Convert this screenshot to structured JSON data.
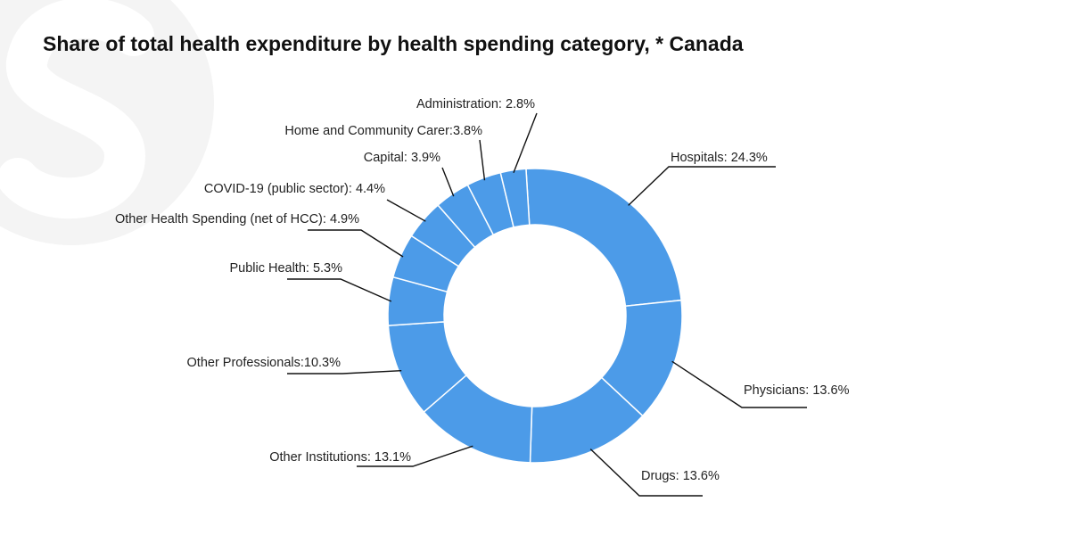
{
  "title": "Share of total health expenditure by health spending category, * Canada",
  "colors": {
    "slice": "#4c9be8",
    "background": "#ffffff",
    "watermark": "#f4f4f4",
    "text": "#222222"
  },
  "chart_data": {
    "type": "pie",
    "style": "donut",
    "title": "Share of total health expenditure by health spending category, * Canada",
    "unit": "%",
    "slices": [
      {
        "category": "Hospitals",
        "value": 24.3,
        "label": "Hospitals: 24.3%"
      },
      {
        "category": "Physicians",
        "value": 13.6,
        "label": "Physicians: 13.6%"
      },
      {
        "category": "Drugs",
        "value": 13.6,
        "label": "Drugs: 13.6%"
      },
      {
        "category": "Other Institutions",
        "value": 13.1,
        "label": "Other Institutions: 13.1%"
      },
      {
        "category": "Other Professionals",
        "value": 10.3,
        "label": "Other Professionals:10.3%"
      },
      {
        "category": "Public Health",
        "value": 5.3,
        "label": "Public Health: 5.3%"
      },
      {
        "category": "Other Health Spending (net of HCC)",
        "value": 4.9,
        "label": "Other Health Spending (net of HCC): 4.9%"
      },
      {
        "category": "COVID-19 (public sector)",
        "value": 4.4,
        "label": "COVID-19 (public sector): 4.4%"
      },
      {
        "category": "Capital",
        "value": 3.9,
        "label": "Capital: 3.9%"
      },
      {
        "category": "Home and Community Carer",
        "value": 3.8,
        "label": "Home and Community Carer:3.8%"
      },
      {
        "category": "Administration",
        "value": 2.8,
        "label": "Administration: 2.8%"
      }
    ]
  }
}
